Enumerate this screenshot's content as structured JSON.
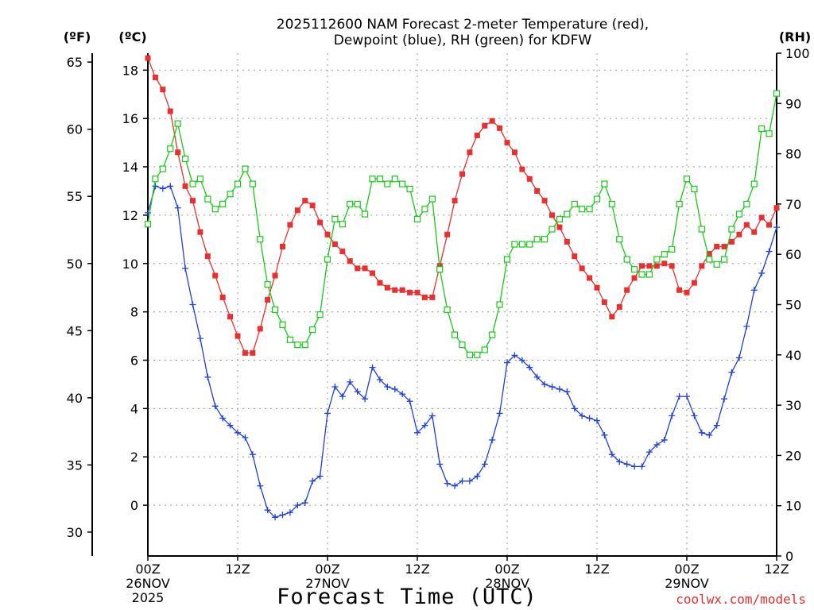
{
  "chart_data": {
    "type": "line",
    "title_line1": "2025112600 NAM Forecast 2-meter Temperature (red),",
    "title_line2": "Dewpoint (blue), RH (green) for KDFW",
    "xlabel": "Forecast Time (UTC)",
    "watermark": "coolwx.com/models",
    "axis_unit_f": "(ºF)",
    "axis_unit_c": "(ºC)",
    "axis_unit_rh": "(RH)",
    "celsius_ticks": [
      "0",
      "2",
      "4",
      "6",
      "8",
      "10",
      "12",
      "14",
      "16",
      "18"
    ],
    "celsius_tick_values": [
      0,
      2,
      4,
      6,
      8,
      10,
      12,
      14,
      16,
      18
    ],
    "fahrenheit_ticks": [
      "30",
      "35",
      "40",
      "45",
      "50",
      "55",
      "60",
      "65"
    ],
    "fahrenheit_tick_values": [
      30,
      35,
      40,
      45,
      50,
      55,
      60,
      65
    ],
    "rh_ticks": [
      "0",
      "10",
      "20",
      "30",
      "40",
      "50",
      "60",
      "70",
      "80",
      "90",
      "100"
    ],
    "rh_tick_values": [
      0,
      10,
      20,
      30,
      40,
      50,
      60,
      70,
      80,
      90,
      100
    ],
    "x_ticks": [
      {
        "hour": 0,
        "lines": [
          "00Z",
          "26NOV",
          "2025"
        ]
      },
      {
        "hour": 12,
        "lines": [
          "12Z"
        ]
      },
      {
        "hour": 24,
        "lines": [
          "00Z",
          "27NOV"
        ]
      },
      {
        "hour": 36,
        "lines": [
          "12Z"
        ]
      },
      {
        "hour": 48,
        "lines": [
          "00Z",
          "28NOV"
        ]
      },
      {
        "hour": 60,
        "lines": [
          "12Z"
        ]
      },
      {
        "hour": 72,
        "lines": [
          "00Z",
          "29NOV"
        ]
      },
      {
        "hour": 84,
        "lines": [
          "12Z"
        ]
      }
    ],
    "xlim": [
      0,
      84
    ],
    "ylim_celsius": [
      -2.1,
      18.7
    ],
    "ylim_rh": [
      0,
      100
    ],
    "series": [
      {
        "name": "Temperature",
        "units": "C",
        "color": "#e83030",
        "marker": "filled-square",
        "hours": [
          0,
          1,
          2,
          3,
          4,
          5,
          6,
          7,
          8,
          9,
          10,
          11,
          12,
          13,
          14,
          15,
          16,
          17,
          18,
          19,
          20,
          21,
          22,
          23,
          24,
          25,
          26,
          27,
          28,
          29,
          30,
          31,
          32,
          33,
          34,
          35,
          36,
          37,
          38,
          39,
          40,
          41,
          42,
          43,
          44,
          45,
          46,
          47,
          48,
          49,
          50,
          51,
          52,
          53,
          54,
          55,
          56,
          57,
          58,
          59,
          60,
          61,
          62,
          63,
          64,
          65,
          66,
          67,
          68,
          69,
          70,
          71,
          72,
          73,
          74,
          75,
          76,
          77,
          78,
          79,
          80,
          81,
          82,
          83,
          84
        ],
        "values": [
          18.5,
          17.7,
          17.2,
          16.3,
          14.6,
          13.2,
          12.6,
          11.3,
          10.3,
          9.5,
          8.6,
          7.8,
          7.0,
          6.3,
          6.3,
          7.3,
          8.5,
          9.5,
          10.7,
          11.6,
          12.2,
          12.6,
          12.4,
          11.7,
          11.2,
          10.8,
          10.5,
          10.1,
          9.8,
          9.8,
          9.6,
          9.2,
          9.0,
          8.9,
          8.9,
          8.8,
          8.8,
          8.6,
          8.6,
          9.9,
          11.2,
          12.6,
          13.7,
          14.6,
          15.3,
          15.7,
          15.9,
          15.6,
          15.0,
          14.6,
          13.9,
          13.5,
          13.0,
          12.6,
          12.0,
          11.5,
          10.9,
          10.3,
          9.8,
          9.4,
          9.0,
          8.4,
          7.8,
          8.2,
          8.9,
          9.4,
          9.9,
          9.9,
          9.9,
          10.0,
          9.9,
          8.9,
          8.8,
          9.2,
          9.9,
          10.4,
          10.7,
          10.7,
          10.9,
          11.2,
          11.6,
          11.3,
          11.9,
          11.6,
          12.3
        ]
      },
      {
        "name": "Dewpoint",
        "units": "C",
        "color": "#2040d8",
        "marker": "plus",
        "hours": [
          0,
          1,
          2,
          3,
          4,
          5,
          6,
          7,
          8,
          9,
          10,
          11,
          12,
          13,
          14,
          15,
          16,
          17,
          18,
          19,
          20,
          21,
          22,
          23,
          24,
          25,
          26,
          27,
          28,
          29,
          30,
          31,
          32,
          33,
          34,
          35,
          36,
          37,
          38,
          39,
          40,
          41,
          42,
          43,
          44,
          45,
          46,
          47,
          48,
          49,
          50,
          51,
          52,
          53,
          54,
          55,
          56,
          57,
          58,
          59,
          60,
          61,
          62,
          63,
          64,
          65,
          66,
          67,
          68,
          69,
          70,
          71,
          72,
          73,
          74,
          75,
          76,
          77,
          78,
          79,
          80,
          81,
          82,
          83,
          84
        ],
        "values": [
          12.1,
          13.2,
          13.1,
          13.2,
          12.3,
          9.8,
          8.3,
          6.9,
          5.3,
          4.1,
          3.6,
          3.3,
          3.0,
          2.8,
          2.1,
          0.8,
          -0.2,
          -0.5,
          -0.4,
          -0.3,
          0.0,
          0.1,
          1.0,
          1.2,
          3.8,
          4.9,
          4.5,
          5.1,
          4.7,
          4.4,
          5.7,
          5.2,
          4.9,
          4.8,
          4.6,
          4.3,
          3.0,
          3.3,
          3.7,
          1.7,
          0.9,
          0.8,
          1.0,
          1.0,
          1.2,
          1.7,
          2.7,
          3.8,
          5.9,
          6.2,
          6.0,
          5.7,
          5.3,
          5.0,
          4.9,
          4.8,
          4.7,
          4.0,
          3.7,
          3.6,
          3.5,
          2.9,
          2.1,
          1.8,
          1.7,
          1.6,
          1.6,
          2.2,
          2.5,
          2.7,
          3.7,
          4.5,
          4.5,
          3.7,
          3.0,
          2.9,
          3.3,
          4.4,
          5.5,
          6.1,
          7.4,
          8.9,
          9.6,
          10.5,
          11.5
        ]
      },
      {
        "name": "RH",
        "units": "%",
        "color": "#18c818",
        "marker": "open-square",
        "hours": [
          0,
          1,
          2,
          3,
          4,
          5,
          6,
          7,
          8,
          9,
          10,
          11,
          12,
          13,
          14,
          15,
          16,
          17,
          18,
          19,
          20,
          21,
          22,
          23,
          24,
          25,
          26,
          27,
          28,
          29,
          30,
          31,
          32,
          33,
          34,
          35,
          36,
          37,
          38,
          39,
          40,
          41,
          42,
          43,
          44,
          45,
          46,
          47,
          48,
          49,
          50,
          51,
          52,
          53,
          54,
          55,
          56,
          57,
          58,
          59,
          60,
          61,
          62,
          63,
          64,
          65,
          66,
          67,
          68,
          69,
          70,
          71,
          72,
          73,
          74,
          75,
          76,
          77,
          78,
          79,
          80,
          81,
          82,
          83,
          84
        ],
        "values": [
          66,
          75,
          77,
          81,
          86,
          79,
          74,
          75,
          71,
          69,
          70,
          72,
          74,
          77,
          74,
          63,
          54,
          49,
          46,
          43,
          42,
          42,
          45,
          48,
          59,
          67,
          66,
          70,
          70,
          68,
          75,
          75,
          74,
          75,
          74,
          73,
          67,
          69,
          71,
          57,
          49,
          44,
          42,
          40,
          40,
          41,
          44,
          50,
          59,
          62,
          62,
          62,
          63,
          63,
          65,
          67,
          68,
          70,
          69,
          69,
          71,
          74,
          70,
          63,
          59,
          57,
          56,
          56,
          59,
          60,
          61,
          70,
          75,
          73,
          65,
          59,
          58,
          59,
          65,
          68,
          70,
          74,
          85,
          84,
          92
        ]
      }
    ]
  }
}
